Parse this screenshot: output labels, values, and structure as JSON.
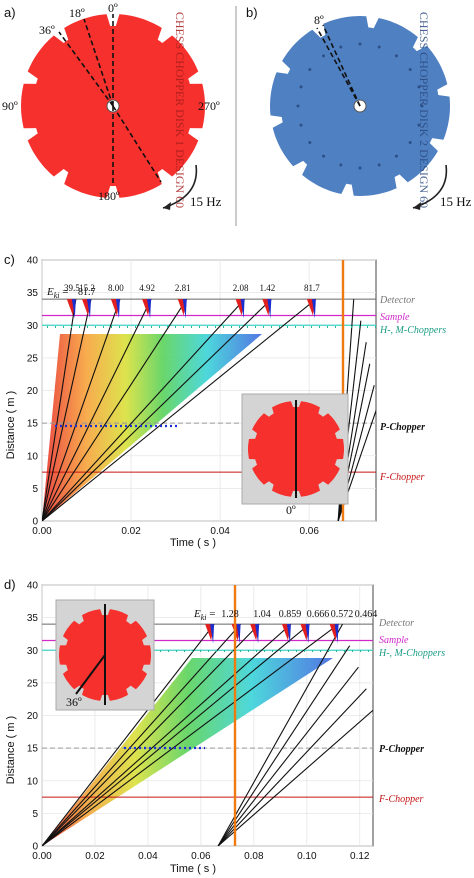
{
  "panel_a": {
    "label": "a)",
    "angles": [
      "0º",
      "18º",
      "36º",
      "90º",
      "270º",
      "180º"
    ],
    "engraving": "CHESS CHOPPER DISK 1 DESIGN 60",
    "freq": "15 Hz",
    "disk_color": "#f6302c"
  },
  "panel_b": {
    "label": "b)",
    "angle": "8º",
    "engraving": "CHESS CHOPPER DISK 2 DESIGN 60",
    "freq": "15 Hz",
    "disk_color": "#4f80c2"
  },
  "panel_c": {
    "label": "c)",
    "xlabel": "Time ( s )",
    "ylabel": "Distance ( m )",
    "energy_prefix": "E",
    "energy_sub": "ki",
    "energy_eq": " = ",
    "energies": [
      "81.7",
      "39.5",
      "15.2",
      "8.00",
      "4.92",
      "2.81",
      "2.08",
      "1.42",
      "81.7"
    ],
    "xticks": [
      "0.00",
      "0.02",
      "0.04",
      "0.06"
    ],
    "yticks": [
      "0",
      "5",
      "10",
      "15",
      "20",
      "25",
      "30",
      "35",
      "40"
    ],
    "labels": {
      "detector": "Detector",
      "sample": "Sample",
      "hm": "H-, M-Choppers",
      "p": "P-Chopper",
      "f": "F-Chopper"
    },
    "inset_angle": "0º"
  },
  "panel_d": {
    "label": "d)",
    "xlabel": "Time ( s )",
    "ylabel": "Distance ( m )",
    "energy_prefix": "E",
    "energy_sub": "ki",
    "energy_eq": " = ",
    "energies": [
      "1.28",
      "1.04",
      "0.859",
      "0.666",
      "0.572",
      "0.464"
    ],
    "xticks": [
      "0.00",
      "0.02",
      "0.04",
      "0.06",
      "0.08",
      "0.10",
      "0.12"
    ],
    "yticks": [
      "0",
      "5",
      "10",
      "15",
      "20",
      "25",
      "30",
      "35",
      "40"
    ],
    "labels": {
      "detector": "Detector",
      "sample": "Sample",
      "hm": "H-, M-Choppers",
      "p": "P-Chopper",
      "f": "F-Chopper"
    },
    "inset_angle": "36º"
  },
  "chart_data": [
    {
      "type": "line",
      "xlabel": "Time ( s )",
      "ylabel": "Distance ( m )",
      "xlim": [
        0,
        0.075
      ],
      "ylim": [
        0,
        40
      ],
      "grid": true,
      "reference_lines_m": {
        "Detector": 34,
        "Sample": 31.5,
        "H-, M-Choppers": 30,
        "P-Chopper": 15,
        "F-Chopper": 7.5
      },
      "frame_boundary_s": 0.0665,
      "trajectory_arrival_times_s": [
        0.0076,
        0.011,
        0.0175,
        0.0245,
        0.0325,
        0.0455,
        0.0515,
        0.0615
      ],
      "next_frame_trajectory_arrival_times_s": [
        0.07,
        0.0716,
        0.0728,
        0.0736,
        0.0746,
        0.0753
      ],
      "energies_meV": [
        81.7,
        39.5,
        15.2,
        8.0,
        4.92,
        2.81,
        2.08,
        1.42,
        81.7
      ]
    },
    {
      "type": "line",
      "xlabel": "Time ( s )",
      "ylabel": "Distance ( m )",
      "xlim": [
        0,
        0.125
      ],
      "ylim": [
        0,
        40
      ],
      "grid": true,
      "reference_lines_m": {
        "Detector": 34,
        "Sample": 31.5,
        "H-, M-Choppers": 30,
        "P-Chopper": 15,
        "F-Chopper": 7.5
      },
      "frame_boundary_s": 0.0665,
      "trajectory_arrival_times_s": [
        0.065,
        0.075,
        0.082,
        0.094,
        0.101,
        0.112
      ],
      "next_frame_trajectory_arrival_times_s": [
        0.1135,
        0.1162,
        0.1195,
        0.1225,
        0.125
      ],
      "energies_meV": [
        1.28,
        1.04,
        0.859,
        0.666,
        0.572,
        0.464
      ]
    }
  ]
}
